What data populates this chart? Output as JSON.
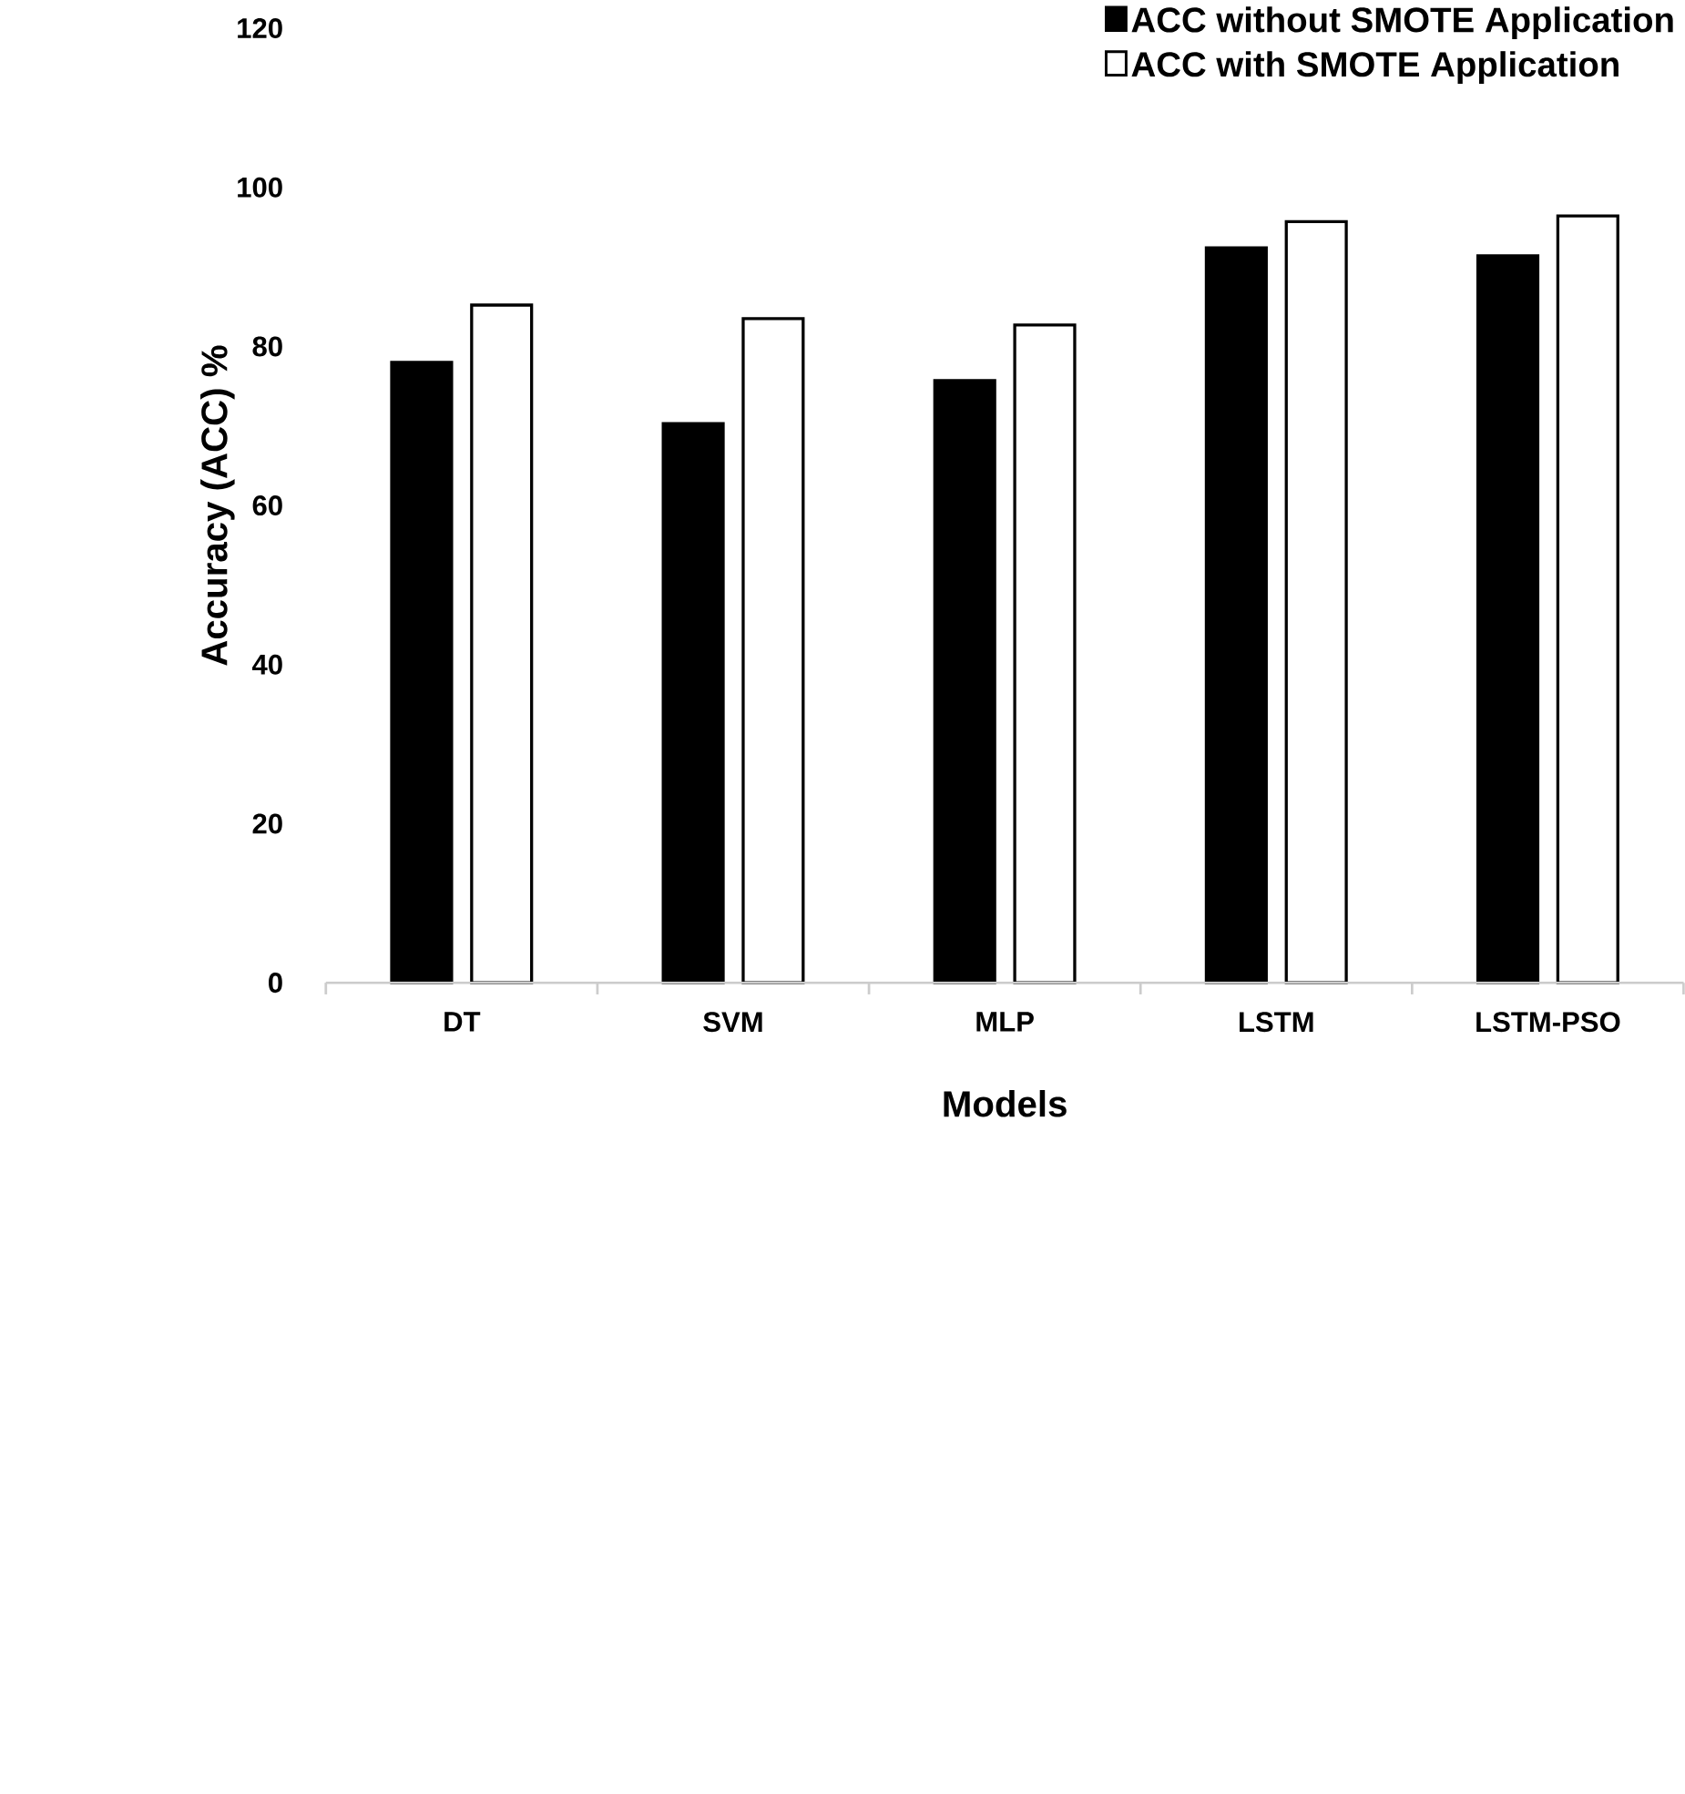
{
  "chart_data": {
    "type": "bar",
    "xlabel": "Models",
    "ylabel": "Accuracy  (ACC) %",
    "categories": [
      "DT",
      "SVM",
      "MLP",
      "LSTM",
      "LSTM-PSO"
    ],
    "series": [
      {
        "name": "ACC without SMOTE Application",
        "color": "#000000",
        "values": [
          78.0,
          70.3,
          75.7,
          92.4,
          91.4
        ]
      },
      {
        "name": "ACC with SMOTE Application",
        "color": "#ffffff",
        "values": [
          85.2,
          83.5,
          82.7,
          95.7,
          96.4
        ]
      }
    ],
    "ylim": [
      0,
      120
    ],
    "yticks": [
      0,
      20,
      40,
      60,
      80,
      100,
      120
    ],
    "grid": false,
    "legend": "top right"
  }
}
